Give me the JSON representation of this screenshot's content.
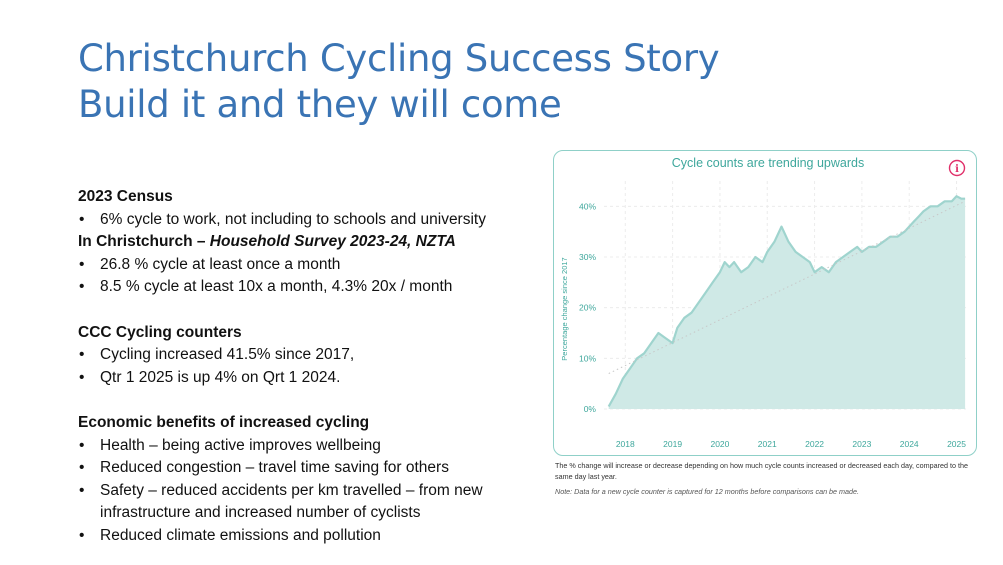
{
  "title": {
    "line1": "Christchurch Cycling Success Story",
    "line2": "Build it and they will come"
  },
  "sections": [
    {
      "heading": "2023 Census",
      "bullets": [
        "6% cycle to work, not including to schools and university"
      ]
    },
    {
      "heading_plain": "In Christchurch – ",
      "heading_italic": "Household Survey 2023-24, NZTA",
      "bullets": [
        "26.8 % cycle at least once a month",
        "8.5 % cycle at least 10x a month, 4.3% 20x / month"
      ]
    },
    {
      "heading": "CCC Cycling counters",
      "bullets": [
        "Cycling increased 41.5% since 2017,",
        "Qtr 1 2025 is up 4% on Qrt 1 2024."
      ]
    },
    {
      "heading": "Economic benefits of increased cycling",
      "bullets": [
        "Health – being active improves wellbeing",
        "Reduced congestion – travel time saving for others",
        "Safety – reduced accidents per km travelled – from new infrastructure and increased number of cyclists",
        "Reduced climate emissions and pollution"
      ]
    }
  ],
  "chart_notes": {
    "note1": "The % change will increase or decrease depending on how much cycle counts increased or decreased each day, compared to the same day last year.",
    "note2": "Note: Data for a new cycle counter is captured for 12 months before comparisons can be made."
  },
  "chart_data": {
    "type": "area",
    "title": "Cycle counts are trending upwards",
    "ylabel": "Percentage change since 2017",
    "xlabel": "",
    "info_icon": "info-icon",
    "x_ticks": [
      "2018",
      "2019",
      "2020",
      "2021",
      "2022",
      "2023",
      "2024",
      "2025"
    ],
    "y_ticks": [
      "0%",
      "10%",
      "20%",
      "30%",
      "40%"
    ],
    "xlim": [
      2017.55,
      2025.2
    ],
    "ylim": [
      0,
      45
    ],
    "grid": true,
    "trendline": true,
    "colors": {
      "fill": "#cfe9e6",
      "line": "#9fd4ce",
      "border": "#8fd0c8",
      "title": "#3ea79c",
      "icon": "#e0306a",
      "trend": "#c8c8c8"
    },
    "series": [
      {
        "x": [
          2017.65,
          2017.8,
          2017.95,
          2018.1,
          2018.25,
          2018.4,
          2018.55,
          2018.7,
          2018.85,
          2019.0,
          2019.1,
          2019.25,
          2019.4,
          2019.55,
          2019.7,
          2019.85,
          2020.0,
          2020.1,
          2020.2,
          2020.3,
          2020.45,
          2020.6,
          2020.75,
          2020.9,
          2021.0,
          2021.15,
          2021.3,
          2021.45,
          2021.6,
          2021.75,
          2021.9,
          2022.0,
          2022.15,
          2022.3,
          2022.45,
          2022.6,
          2022.75,
          2022.9,
          2023.0,
          2023.15,
          2023.3,
          2023.45,
          2023.6,
          2023.75,
          2023.9,
          2024.0,
          2024.1,
          2024.2,
          2024.3,
          2024.45,
          2024.6,
          2024.75,
          2024.9,
          2025.0,
          2025.1,
          2025.18
        ],
        "values": [
          0.5,
          3,
          6,
          8,
          10,
          11,
          13,
          15,
          14,
          13,
          16,
          18,
          19,
          21,
          23,
          25,
          27,
          29,
          28,
          29,
          27,
          28,
          30,
          29,
          31,
          33,
          36,
          33,
          31,
          30,
          29,
          27,
          28,
          27,
          29,
          30,
          31,
          32,
          31,
          32,
          32,
          33,
          34,
          34,
          35,
          36,
          37,
          38,
          39,
          40,
          40,
          41,
          41,
          42,
          41.5,
          41.5
        ]
      }
    ]
  }
}
